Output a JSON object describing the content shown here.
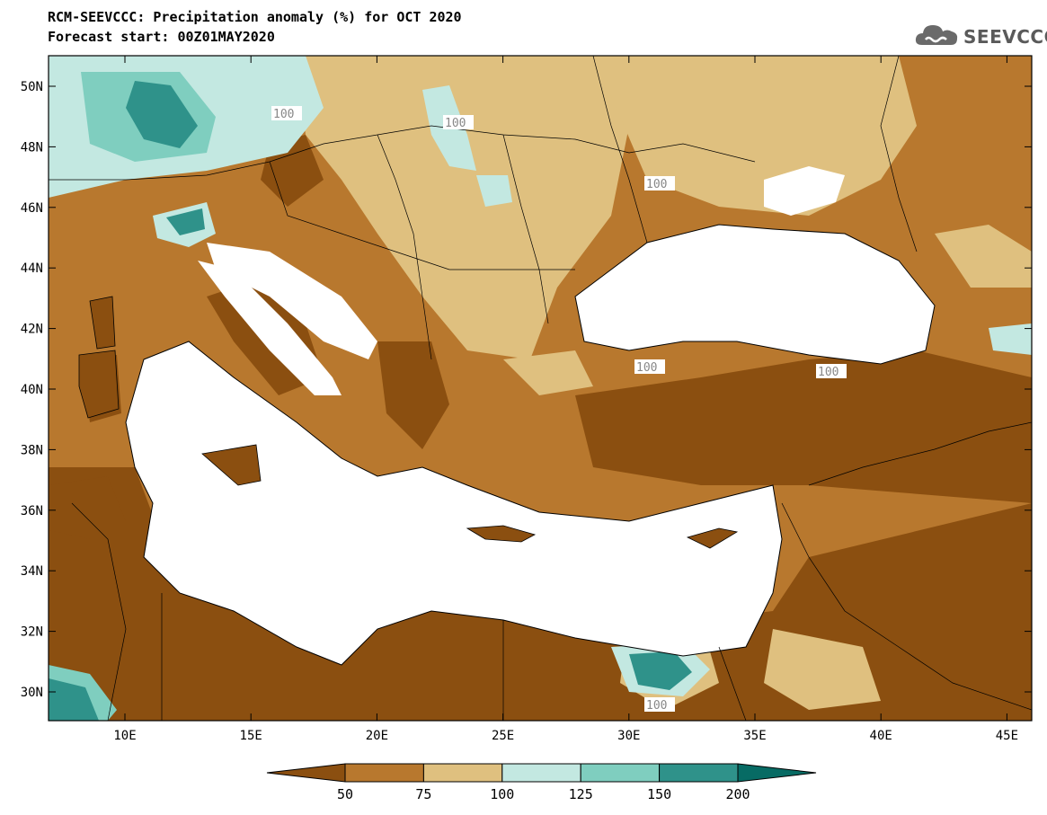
{
  "title_line1": "RCM-SEEVCCC: Precipitation anomaly (%) for OCT 2020",
  "title_line2": "Forecast start: 00Z01MAY2020",
  "logo_text": "SEEVCCC",
  "lat_ticks": [
    "50N",
    "48N",
    "46N",
    "44N",
    "42N",
    "40N",
    "38N",
    "36N",
    "34N",
    "32N",
    "30N"
  ],
  "lon_ticks": [
    "10E",
    "15E",
    "20E",
    "25E",
    "30E",
    "35E",
    "40E",
    "45E"
  ],
  "contour_label": "100",
  "colorbar": {
    "colors": [
      "#8b4f10",
      "#b8782e",
      "#dfc07f",
      "#c3e8e1",
      "#7fcebf",
      "#2f928a",
      "#076b64"
    ],
    "labels": [
      "50",
      "75",
      "100",
      "125",
      "150",
      "200"
    ]
  },
  "legend_colors": {
    "very_dry": "#8b4f10",
    "dry": "#b8782e",
    "slightly_dry": "#dfc07f",
    "slightly_wet": "#c3e8e1",
    "wet": "#7fcebf",
    "very_wet": "#2f928a",
    "extreme_wet": "#076b64"
  }
}
